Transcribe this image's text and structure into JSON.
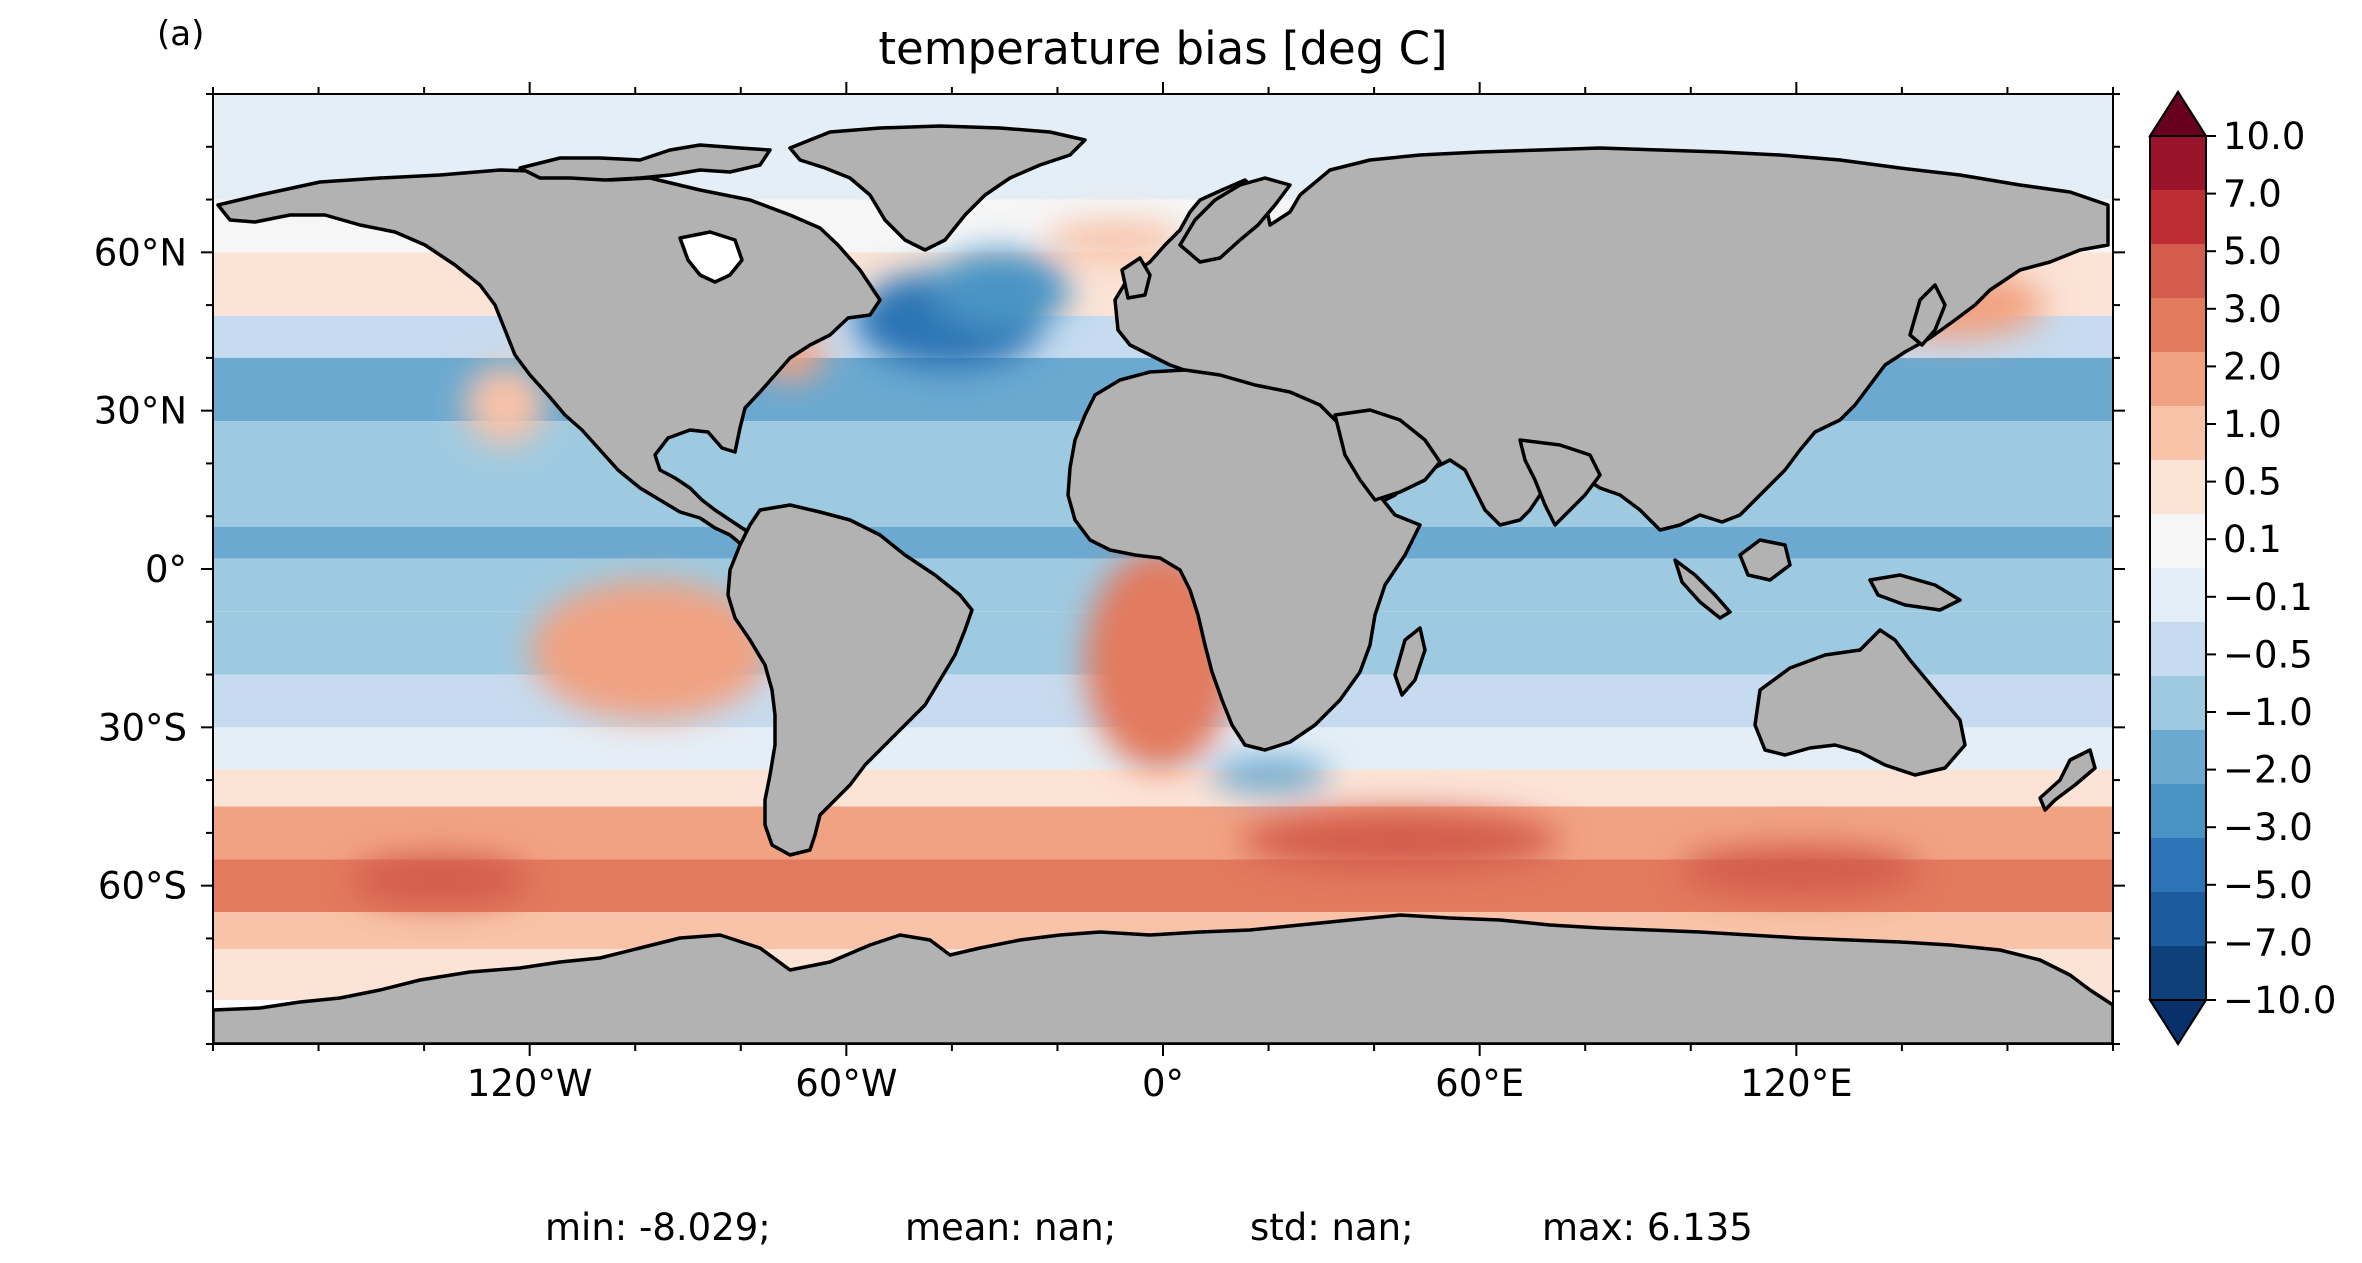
{
  "panel_label": "(a)",
  "title": "temperature bias [deg C]",
  "chart_data": {
    "type": "heatmap",
    "projection": "PlateCarree",
    "title": "temperature bias [deg C]",
    "xlim": [
      -180,
      180
    ],
    "ylim": [
      -90,
      90
    ],
    "x_ticks": [
      {
        "value": -120,
        "label": "120°W"
      },
      {
        "value": -60,
        "label": "60°W"
      },
      {
        "value": 0,
        "label": "0°"
      },
      {
        "value": 60,
        "label": "60°E"
      },
      {
        "value": 120,
        "label": "120°E"
      }
    ],
    "y_ticks": [
      {
        "value": 60,
        "label": "60°N"
      },
      {
        "value": 30,
        "label": "30°N"
      },
      {
        "value": 0,
        "label": "0°"
      },
      {
        "value": -30,
        "label": "30°S"
      },
      {
        "value": -60,
        "label": "60°S"
      }
    ],
    "colorbar": {
      "cmap": "RdBu_r",
      "extend": "both",
      "levels": [
        -10.0,
        -7.0,
        -5.0,
        -3.0,
        -2.0,
        -1.0,
        -0.5,
        -0.1,
        0.1,
        0.5,
        1.0,
        2.0,
        3.0,
        5.0,
        7.0,
        10.0
      ],
      "tick_labels": [
        "10.0",
        "7.0",
        "5.0",
        "3.0",
        "2.0",
        "1.0",
        "0.5",
        "0.1",
        "−0.1",
        "−0.5",
        "−1.0",
        "−2.0",
        "−3.0",
        "−5.0",
        "−7.0",
        "−10.0"
      ],
      "colors": [
        "#0e4179",
        "#1c5c9e",
        "#2c74b5",
        "#4a94c5",
        "#6ba9d0",
        "#9ecae1",
        "#c6dbef",
        "#e4eef6",
        "#f6f6f6",
        "#fbe3d6",
        "#f8c3a8",
        "#f1a282",
        "#e27a5e",
        "#d35c4c",
        "#bd2d34",
        "#99132a"
      ],
      "extend_colors": {
        "under": "#08306b",
        "over": "#67001f"
      }
    },
    "land_color": "#b2b2b2",
    "coastline_color": "#000000"
  },
  "stats": {
    "min": "min: -8.029;",
    "mean": "mean: nan;",
    "std": "std: nan;",
    "max": "max: 6.135"
  }
}
